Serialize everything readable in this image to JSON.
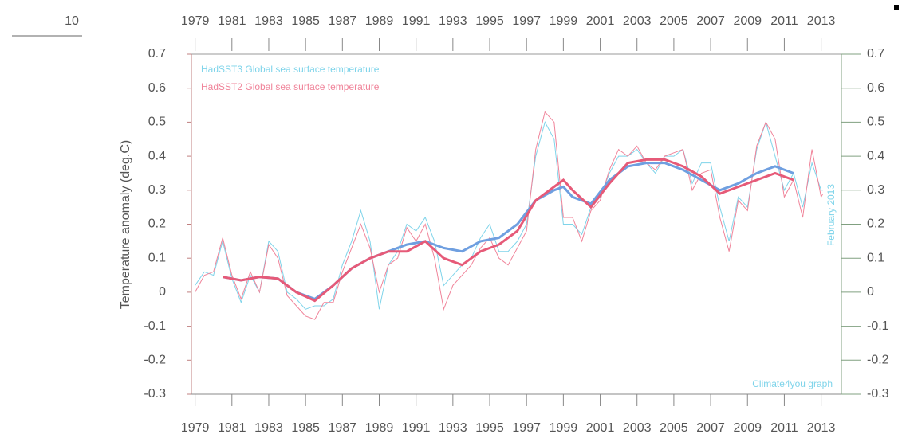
{
  "page_number": "10",
  "chart_data": {
    "type": "line",
    "ylabel": "Temperature anomaly (deg.C)",
    "annotations": [
      "February 2013",
      "Climate4you graph"
    ],
    "xlim": [
      1978.8,
      2014.1
    ],
    "xticks": [
      1979,
      1981,
      1983,
      1985,
      1987,
      1989,
      1991,
      1993,
      1995,
      1997,
      1999,
      2001,
      2003,
      2005,
      2007,
      2009,
      2011,
      2013
    ],
    "ylim": [
      -0.3,
      0.7
    ],
    "yticks": [
      -0.3,
      -0.2,
      -0.1,
      0,
      0.1,
      0.2,
      0.3,
      0.4,
      0.5,
      0.6,
      0.7
    ],
    "y2lim": [
      -0.3,
      0.7
    ],
    "y2ticks": [
      -0.3,
      -0.2,
      -0.1,
      0,
      0.1,
      0.2,
      0.3,
      0.4,
      0.5,
      0.6,
      0.7
    ],
    "series": [
      {
        "name": "HadSST3  Global sea surface temperature",
        "color": "#7fd4ea",
        "x": [
          1979.0,
          1979.5,
          1980.0,
          1980.5,
          1981.0,
          1981.5,
          1982.0,
          1982.5,
          1983.0,
          1983.5,
          1984.0,
          1984.5,
          1985.0,
          1985.5,
          1986.0,
          1986.5,
          1987.0,
          1987.5,
          1988.0,
          1988.5,
          1989.0,
          1989.5,
          1990.0,
          1990.5,
          1991.0,
          1991.5,
          1992.0,
          1992.5,
          1993.0,
          1993.5,
          1994.0,
          1994.5,
          1995.0,
          1995.5,
          1996.0,
          1996.5,
          1997.0,
          1997.5,
          1998.0,
          1998.5,
          1999.0,
          1999.5,
          2000.0,
          2000.5,
          2001.0,
          2001.5,
          2002.0,
          2002.5,
          2003.0,
          2003.5,
          2004.0,
          2004.5,
          2005.0,
          2005.5,
          2006.0,
          2006.5,
          2007.0,
          2007.5,
          2008.0,
          2008.5,
          2009.0,
          2009.5,
          2010.0,
          2010.5,
          2011.0,
          2011.5,
          2012.0,
          2012.5,
          2013.0,
          2013.1
        ],
        "values": [
          0.02,
          0.06,
          0.05,
          0.15,
          0.04,
          -0.03,
          0.05,
          0.0,
          0.15,
          0.12,
          0.0,
          -0.02,
          -0.05,
          -0.04,
          -0.04,
          -0.02,
          0.08,
          0.15,
          0.24,
          0.15,
          -0.05,
          0.08,
          0.12,
          0.2,
          0.18,
          0.22,
          0.15,
          0.02,
          0.05,
          0.08,
          0.1,
          0.16,
          0.2,
          0.12,
          0.12,
          0.15,
          0.2,
          0.4,
          0.5,
          0.45,
          0.2,
          0.2,
          0.17,
          0.25,
          0.28,
          0.35,
          0.4,
          0.4,
          0.42,
          0.38,
          0.35,
          0.4,
          0.4,
          0.42,
          0.32,
          0.38,
          0.38,
          0.25,
          0.15,
          0.28,
          0.25,
          0.42,
          0.5,
          0.4,
          0.3,
          0.35,
          0.25,
          0.38,
          0.3,
          0.3
        ]
      },
      {
        "name": "HadSST2  Global sea surface temperature",
        "color": "#f0849a",
        "x": [
          1979.0,
          1979.5,
          1980.0,
          1980.5,
          1981.0,
          1981.5,
          1982.0,
          1982.5,
          1983.0,
          1983.5,
          1984.0,
          1984.5,
          1985.0,
          1985.5,
          1986.0,
          1986.5,
          1987.0,
          1987.5,
          1988.0,
          1988.5,
          1989.0,
          1989.5,
          1990.0,
          1990.5,
          1991.0,
          1991.5,
          1992.0,
          1992.5,
          1993.0,
          1993.5,
          1994.0,
          1994.5,
          1995.0,
          1995.5,
          1996.0,
          1996.5,
          1997.0,
          1997.5,
          1998.0,
          1998.5,
          1999.0,
          1999.5,
          2000.0,
          2000.5,
          2001.0,
          2001.5,
          2002.0,
          2002.5,
          2003.0,
          2003.5,
          2004.0,
          2004.5,
          2005.0,
          2005.5,
          2006.0,
          2006.5,
          2007.0,
          2007.5,
          2008.0,
          2008.5,
          2009.0,
          2009.5,
          2010.0,
          2010.5,
          2011.0,
          2011.5,
          2012.0,
          2012.5,
          2013.0,
          2013.1
        ],
        "values": [
          0.0,
          0.05,
          0.06,
          0.16,
          0.05,
          -0.02,
          0.06,
          0.0,
          0.14,
          0.1,
          -0.01,
          -0.04,
          -0.07,
          -0.08,
          -0.03,
          -0.03,
          0.06,
          0.13,
          0.2,
          0.13,
          0.0,
          0.08,
          0.1,
          0.19,
          0.15,
          0.2,
          0.1,
          -0.05,
          0.02,
          0.05,
          0.08,
          0.13,
          0.16,
          0.1,
          0.08,
          0.13,
          0.18,
          0.42,
          0.53,
          0.5,
          0.22,
          0.22,
          0.15,
          0.24,
          0.27,
          0.36,
          0.42,
          0.4,
          0.43,
          0.38,
          0.36,
          0.4,
          0.41,
          0.42,
          0.3,
          0.35,
          0.36,
          0.22,
          0.12,
          0.27,
          0.24,
          0.43,
          0.5,
          0.45,
          0.28,
          0.33,
          0.22,
          0.42,
          0.28,
          0.29
        ]
      },
      {
        "color": "#6f9fe0",
        "x": [
          1980.5,
          1981.5,
          1982.5,
          1983.5,
          1984.5,
          1985.5,
          1986.5,
          1987.5,
          1988.5,
          1989.5,
          1990.5,
          1991.5,
          1992.5,
          1993.5,
          1994.5,
          1995.5,
          1996.5,
          1997.5,
          1998.5,
          1999.0,
          1999.5,
          2000.5,
          2001.5,
          2002.5,
          2003.5,
          2004.5,
          2005.5,
          2006.5,
          2007.5,
          2008.5,
          2009.5,
          2010.5,
          2011.5
        ],
        "values": [
          0.045,
          0.035,
          0.045,
          0.04,
          0.0,
          -0.02,
          0.02,
          0.07,
          0.1,
          0.12,
          0.14,
          0.15,
          0.13,
          0.12,
          0.15,
          0.16,
          0.2,
          0.27,
          0.3,
          0.31,
          0.28,
          0.26,
          0.33,
          0.37,
          0.38,
          0.38,
          0.36,
          0.33,
          0.3,
          0.32,
          0.35,
          0.37,
          0.35
        ]
      },
      {
        "color": "#e65a78",
        "x": [
          1980.5,
          1981.5,
          1982.5,
          1983.5,
          1984.5,
          1985.5,
          1986.5,
          1987.5,
          1988.5,
          1989.5,
          1990.5,
          1991.5,
          1992.5,
          1993.5,
          1994.5,
          1995.5,
          1996.5,
          1997.5,
          1998.5,
          1999.0,
          1999.5,
          2000.5,
          2001.5,
          2002.5,
          2003.5,
          2004.5,
          2005.5,
          2006.5,
          2007.5,
          2008.5,
          2009.5,
          2010.5,
          2011.5
        ],
        "values": [
          0.045,
          0.035,
          0.045,
          0.04,
          0.0,
          -0.025,
          0.02,
          0.07,
          0.1,
          0.12,
          0.12,
          0.15,
          0.1,
          0.08,
          0.12,
          0.14,
          0.18,
          0.27,
          0.31,
          0.33,
          0.3,
          0.25,
          0.32,
          0.38,
          0.39,
          0.39,
          0.37,
          0.34,
          0.29,
          0.31,
          0.33,
          0.35,
          0.33
        ]
      }
    ]
  }
}
